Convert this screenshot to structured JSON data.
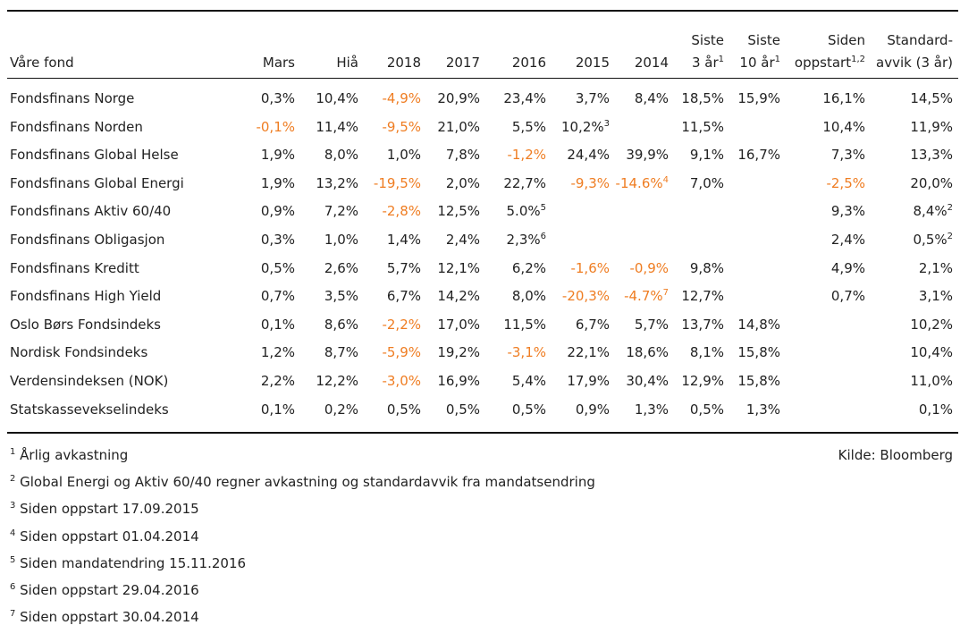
{
  "columns": [
    {
      "key": "name",
      "lines": [
        "Våre fond"
      ]
    },
    {
      "key": "mars",
      "lines": [
        "Mars"
      ]
    },
    {
      "key": "hia",
      "lines": [
        "Hiå"
      ]
    },
    {
      "key": "y2018",
      "lines": [
        "2018"
      ]
    },
    {
      "key": "y2017",
      "lines": [
        "2017"
      ]
    },
    {
      "key": "y2016",
      "lines": [
        "2016"
      ]
    },
    {
      "key": "y2015",
      "lines": [
        "2015"
      ]
    },
    {
      "key": "y2014",
      "lines": [
        "2014"
      ]
    },
    {
      "key": "siste3",
      "lines": [
        "Siste",
        "3 år"
      ],
      "sup": "1"
    },
    {
      "key": "siste10",
      "lines": [
        "Siste",
        "10 år"
      ],
      "sup": "1"
    },
    {
      "key": "siden",
      "lines": [
        "Siden",
        "oppstart"
      ],
      "sup": "1,2"
    },
    {
      "key": "std",
      "lines": [
        "Standard-",
        "avvik (3 år)"
      ]
    }
  ],
  "rows": [
    {
      "name": "Fondsfinans Norge",
      "cells": [
        {
          "v": "0,3%"
        },
        {
          "v": "10,4%"
        },
        {
          "v": "-4,9%",
          "neg": true
        },
        {
          "v": "20,9%"
        },
        {
          "v": "23,4%"
        },
        {
          "v": "3,7%"
        },
        {
          "v": "8,4%"
        },
        {
          "v": "18,5%"
        },
        {
          "v": "15,9%"
        },
        {
          "v": "16,1%"
        },
        {
          "v": "14,5%"
        }
      ]
    },
    {
      "name": "Fondsfinans Norden",
      "cells": [
        {
          "v": "-0,1%",
          "neg": true
        },
        {
          "v": "11,4%"
        },
        {
          "v": "-9,5%",
          "neg": true
        },
        {
          "v": "21,0%"
        },
        {
          "v": "5,5%"
        },
        {
          "v": "10,2%",
          "sup": "3"
        },
        {
          "v": ""
        },
        {
          "v": "11,5%"
        },
        {
          "v": ""
        },
        {
          "v": "10,4%"
        },
        {
          "v": "11,9%"
        }
      ]
    },
    {
      "name": "Fondsfinans Global Helse",
      "cells": [
        {
          "v": "1,9%"
        },
        {
          "v": "8,0%"
        },
        {
          "v": "1,0%"
        },
        {
          "v": "7,8%"
        },
        {
          "v": "-1,2%",
          "neg": true
        },
        {
          "v": "24,4%"
        },
        {
          "v": "39,9%"
        },
        {
          "v": "9,1%"
        },
        {
          "v": "16,7%"
        },
        {
          "v": "7,3%"
        },
        {
          "v": "13,3%"
        }
      ]
    },
    {
      "name": "Fondsfinans Global Energi",
      "cells": [
        {
          "v": "1,9%"
        },
        {
          "v": "13,2%"
        },
        {
          "v": "-19,5%",
          "neg": true
        },
        {
          "v": "2,0%"
        },
        {
          "v": "22,7%"
        },
        {
          "v": "-9,3%",
          "neg": true
        },
        {
          "v": "-14.6%",
          "neg": true,
          "sup": "4"
        },
        {
          "v": "7,0%"
        },
        {
          "v": ""
        },
        {
          "v": "-2,5%",
          "neg": true
        },
        {
          "v": "20,0%"
        }
      ]
    },
    {
      "name": "Fondsfinans Aktiv 60/40",
      "cells": [
        {
          "v": "0,9%"
        },
        {
          "v": "7,2%"
        },
        {
          "v": "-2,8%",
          "neg": true
        },
        {
          "v": "12,5%"
        },
        {
          "v": "5.0%",
          "sup": "5"
        },
        {
          "v": ""
        },
        {
          "v": ""
        },
        {
          "v": ""
        },
        {
          "v": ""
        },
        {
          "v": "9,3%"
        },
        {
          "v": "8,4%",
          "sup": "2"
        }
      ]
    },
    {
      "name": "Fondsfinans Obligasjon",
      "cells": [
        {
          "v": "0,3%"
        },
        {
          "v": "1,0%"
        },
        {
          "v": "1,4%"
        },
        {
          "v": "2,4%"
        },
        {
          "v": "2,3%",
          "sup": "6"
        },
        {
          "v": ""
        },
        {
          "v": ""
        },
        {
          "v": ""
        },
        {
          "v": ""
        },
        {
          "v": "2,4%"
        },
        {
          "v": "0,5%",
          "sup": "2"
        }
      ]
    },
    {
      "name": "Fondsfinans Kreditt",
      "cells": [
        {
          "v": "0,5%"
        },
        {
          "v": "2,6%"
        },
        {
          "v": "5,7%"
        },
        {
          "v": "12,1%"
        },
        {
          "v": "6,2%"
        },
        {
          "v": "-1,6%",
          "neg": true
        },
        {
          "v": "-0,9%",
          "neg": true
        },
        {
          "v": "9,8%"
        },
        {
          "v": ""
        },
        {
          "v": "4,9%"
        },
        {
          "v": "2,1%"
        }
      ]
    },
    {
      "name": "Fondsfinans High Yield",
      "cells": [
        {
          "v": "0,7%"
        },
        {
          "v": "3,5%"
        },
        {
          "v": "6,7%"
        },
        {
          "v": "14,2%"
        },
        {
          "v": "8,0%"
        },
        {
          "v": "-20,3%",
          "neg": true
        },
        {
          "v": "-4.7%",
          "neg": true,
          "sup": "7"
        },
        {
          "v": "12,7%"
        },
        {
          "v": ""
        },
        {
          "v": "0,7%"
        },
        {
          "v": "3,1%"
        }
      ]
    },
    {
      "name": "Oslo Børs Fondsindeks",
      "cells": [
        {
          "v": "0,1%"
        },
        {
          "v": "8,6%"
        },
        {
          "v": "-2,2%",
          "neg": true
        },
        {
          "v": "17,0%"
        },
        {
          "v": "11,5%"
        },
        {
          "v": "6,7%"
        },
        {
          "v": "5,7%"
        },
        {
          "v": "13,7%"
        },
        {
          "v": "14,8%"
        },
        {
          "v": ""
        },
        {
          "v": "10,2%"
        }
      ]
    },
    {
      "name": "Nordisk Fondsindeks",
      "cells": [
        {
          "v": "1,2%"
        },
        {
          "v": "8,7%"
        },
        {
          "v": "-5,9%",
          "neg": true
        },
        {
          "v": "19,2%"
        },
        {
          "v": "-3,1%",
          "neg": true
        },
        {
          "v": "22,1%"
        },
        {
          "v": "18,6%"
        },
        {
          "v": "8,1%"
        },
        {
          "v": "15,8%"
        },
        {
          "v": ""
        },
        {
          "v": "10,4%"
        }
      ]
    },
    {
      "name": "Verdensindeksen (NOK)",
      "cells": [
        {
          "v": "2,2%"
        },
        {
          "v": "12,2%"
        },
        {
          "v": "-3,0%",
          "neg": true
        },
        {
          "v": "16,9%"
        },
        {
          "v": "5,4%"
        },
        {
          "v": "17,9%"
        },
        {
          "v": "30,4%"
        },
        {
          "v": "12,9%"
        },
        {
          "v": "15,8%"
        },
        {
          "v": ""
        },
        {
          "v": "11,0%"
        }
      ]
    },
    {
      "name": "Statskassevekselindeks",
      "cells": [
        {
          "v": "0,1%"
        },
        {
          "v": "0,2%"
        },
        {
          "v": "0,5%"
        },
        {
          "v": "0,5%"
        },
        {
          "v": "0,5%"
        },
        {
          "v": "0,9%"
        },
        {
          "v": "1,3%"
        },
        {
          "v": "0,5%"
        },
        {
          "v": "1,3%"
        },
        {
          "v": ""
        },
        {
          "v": "0,1%"
        }
      ]
    }
  ],
  "footnotes": [
    {
      "num": "1",
      "text": "Årlig avkastning"
    },
    {
      "num": "2",
      "text": "Global Energi og Aktiv 60/40 regner avkastning og standardavvik fra mandatsendring"
    },
    {
      "num": "3",
      "text": "Siden oppstart 17.09.2015"
    },
    {
      "num": "4",
      "text": "Siden oppstart 01.04.2014"
    },
    {
      "num": "5",
      "text": "Siden mandatendring 15.11.2016"
    },
    {
      "num": "6",
      "text": "Siden oppstart 29.04.2016"
    },
    {
      "num": "7",
      "text": "Siden oppstart 30.04.2014"
    }
  ],
  "source": "Kilde: Bloomberg",
  "colors": {
    "negative": "#ef7d22",
    "text": "#222222",
    "rule": "#111111"
  }
}
